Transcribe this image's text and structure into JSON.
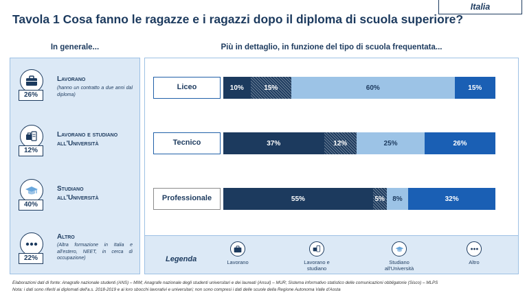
{
  "title": "Tavola 1 Cosa fanno le ragazze e i ragazzi dopo il diploma di scuola superiore?",
  "region": "Italia",
  "left_heading": "In generale...",
  "right_heading": "Più in dettaglio, in funzione del tipo di scuola frequentata...",
  "overall": [
    {
      "label": "Lavorano",
      "pct": "26%",
      "note": "(hanno un contratto a due anni dal diploma)",
      "icon": "briefcase-icon"
    },
    {
      "label": "Lavorano e studiano all'Università",
      "pct": "12%",
      "note": "",
      "icon": "briefcase-book-icon"
    },
    {
      "label": "Studiano all'Università",
      "pct": "40%",
      "note": "",
      "icon": "graduation-cap-icon"
    },
    {
      "label": "Altro",
      "pct": "22%",
      "note": "(Altra formazione in Italia e all'estero, NEET, in cerca di occupazione)",
      "icon": "ellipsis-icon"
    }
  ],
  "legend": {
    "title": "Legenda",
    "items": [
      "Lavorano",
      "Lavorano e studiano",
      "Studiano all'Università",
      "Altro"
    ]
  },
  "colors": {
    "lavorano": "#1c3a5e",
    "lavorano_studiano": "#1c3a5e",
    "studiano": "#9cc3e6",
    "altro": "#1a5fb4",
    "panel": "#dce9f6"
  },
  "chart_data": {
    "type": "bar",
    "orientation": "horizontal",
    "stacked": true,
    "categories": [
      "Liceo",
      "Tecnico",
      "Professionale"
    ],
    "series": [
      {
        "name": "Lavorano",
        "values": [
          10,
          37,
          55
        ],
        "labels": [
          "10%",
          "37%",
          "55%"
        ]
      },
      {
        "name": "Lavorano e studiano",
        "values": [
          15,
          12,
          5
        ],
        "labels": [
          "15%",
          "12%",
          "5%"
        ]
      },
      {
        "name": "Studiano all'Università",
        "values": [
          60,
          25,
          8
        ],
        "labels": [
          "60%",
          "25%",
          "8%"
        ]
      },
      {
        "name": "Altro",
        "values": [
          15,
          26,
          32
        ],
        "labels": [
          "15%",
          "26%",
          "32%"
        ]
      }
    ],
    "xlim": [
      0,
      100
    ],
    "legend_position": "bottom"
  },
  "footnotes": [
    "Elaborazioni dati di fonte: Anagrafe nazionale studenti (ANS) – MIM; Anagrafe nazionale degli studenti universitari e dei laureati (Ansul) – MUR; Sistema informativo statistico delle comunicazioni obbligatorie (Sisco) – MLPS",
    "Nota: i dati sono riferiti ai diplomati dell'a.s. 2018-2019 e ai loro sbocchi lavorativi e universitari; non sono compresi i dati delle scuole della Regione Autonoma Valle d'Aosta"
  ]
}
